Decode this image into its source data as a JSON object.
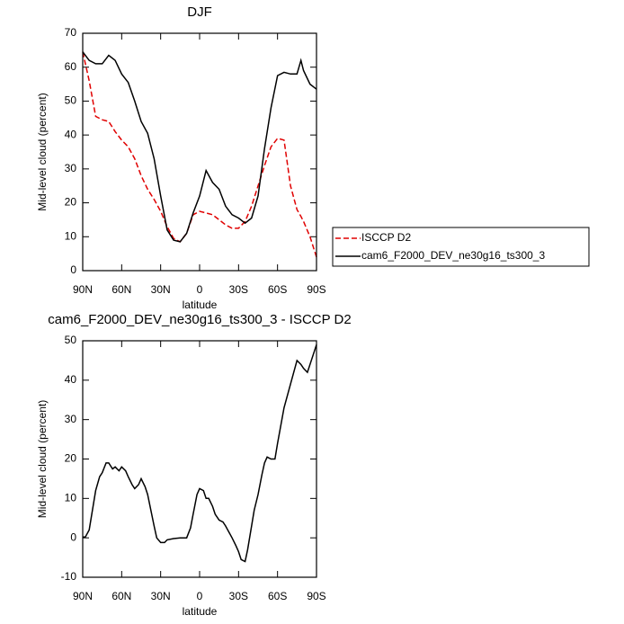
{
  "chart_data": [
    {
      "type": "line",
      "title": "DJF",
      "xlabel": "latitude",
      "ylabel": "Mid-level cloud (percent)",
      "x": [
        90,
        85,
        80,
        75,
        70,
        65,
        60,
        55,
        50,
        45,
        40,
        35,
        30,
        25,
        20,
        15,
        10,
        5,
        0,
        -5,
        -10,
        -15,
        -20,
        -25,
        -30,
        -35,
        -40,
        -45,
        -50,
        -55,
        -60,
        -65,
        -70,
        -75,
        -78,
        -80,
        -85,
        -90
      ],
      "series": [
        {
          "name": "ISCCP D2",
          "color": "#e00000",
          "dash": true,
          "values": [
            64.5,
            56,
            45.5,
            44.5,
            44,
            41,
            38.5,
            36.5,
            33,
            28,
            24,
            21,
            17.5,
            13,
            9.5,
            8.5,
            11,
            16.5,
            17.5,
            17,
            16.5,
            15,
            13.5,
            12.5,
            12.5,
            14.5,
            19,
            25,
            31,
            36.5,
            39,
            38.5,
            25,
            18,
            16,
            14.5,
            10,
            4
          ]
        },
        {
          "name": "cam6_F2000_DEV_ne30g16_ts300_3",
          "color": "#000000",
          "dash": false,
          "values": [
            64.5,
            62,
            61,
            61,
            63.5,
            62,
            58,
            55.5,
            50,
            44,
            40.5,
            33,
            22,
            12,
            9,
            8.5,
            11,
            17,
            22,
            29.5,
            26,
            24,
            19,
            16.5,
            15.5,
            14,
            15.5,
            22,
            36,
            48,
            57.5,
            58.5,
            58,
            58,
            62,
            59,
            55,
            53.5
          ]
        }
      ],
      "xlim": [
        90,
        -90
      ],
      "xticks": [
        {
          "value": 90,
          "label": "90N"
        },
        {
          "value": 60,
          "label": "60N"
        },
        {
          "value": 30,
          "label": "30N"
        },
        0,
        {
          "value": -30,
          "label": "30S"
        },
        {
          "value": -60,
          "label": "60S"
        },
        {
          "value": -90,
          "label": "90S"
        }
      ],
      "ylim": [
        0,
        70
      ],
      "yticks": [
        0,
        10,
        20,
        30,
        40,
        50,
        60,
        70
      ],
      "legend": "right"
    },
    {
      "type": "line",
      "title": "cam6_F2000_DEV_ne30g16_ts300_3 - ISCCP D2",
      "xlabel": "latitude",
      "ylabel": "Mid-level cloud (percent)",
      "x": [
        90,
        88,
        85,
        80,
        77,
        75,
        72,
        70,
        67,
        65,
        62,
        60,
        57,
        55,
        52,
        50,
        47,
        45,
        42,
        40,
        35,
        33,
        30,
        27,
        25,
        20,
        15,
        10,
        7,
        5,
        2,
        0,
        -3,
        -5,
        -7,
        -10,
        -12,
        -15,
        -18,
        -20,
        -25,
        -28,
        -30,
        -32,
        -35,
        -37,
        -40,
        -42,
        -45,
        -48,
        -50,
        -52,
        -55,
        -58,
        -60,
        -65,
        -70,
        -75,
        -78,
        -80,
        -83,
        -85,
        -90
      ],
      "series": [
        {
          "name": null,
          "color": "#000000",
          "dash": false,
          "values": [
            0.2,
            0.2,
            2,
            12,
            15.5,
            16.5,
            19,
            19,
            17.5,
            18,
            17,
            18,
            17,
            15.5,
            13.5,
            12.5,
            13.5,
            15,
            13,
            11,
            3,
            0,
            -1.2,
            -1.2,
            -0.5,
            -0.2,
            0,
            0,
            2.5,
            6,
            11,
            12.5,
            12,
            10,
            10,
            8,
            6,
            4.5,
            4,
            3,
            0,
            -2,
            -3.5,
            -5.5,
            -6,
            -3,
            3,
            7,
            11,
            16,
            19,
            20.5,
            20,
            20,
            24,
            33,
            39,
            45,
            44,
            43,
            42,
            44,
            49
          ]
        }
      ],
      "xlim": [
        90,
        -90
      ],
      "xticks": [
        {
          "value": 90,
          "label": "90N"
        },
        {
          "value": 60,
          "label": "60N"
        },
        {
          "value": 30,
          "label": "30N"
        },
        0,
        {
          "value": -30,
          "label": "30S"
        },
        {
          "value": -60,
          "label": "60S"
        },
        {
          "value": -90,
          "label": "90S"
        }
      ],
      "ylim": [
        -10,
        50
      ],
      "yticks": [
        -10,
        0,
        10,
        20,
        30,
        40,
        50
      ]
    }
  ]
}
